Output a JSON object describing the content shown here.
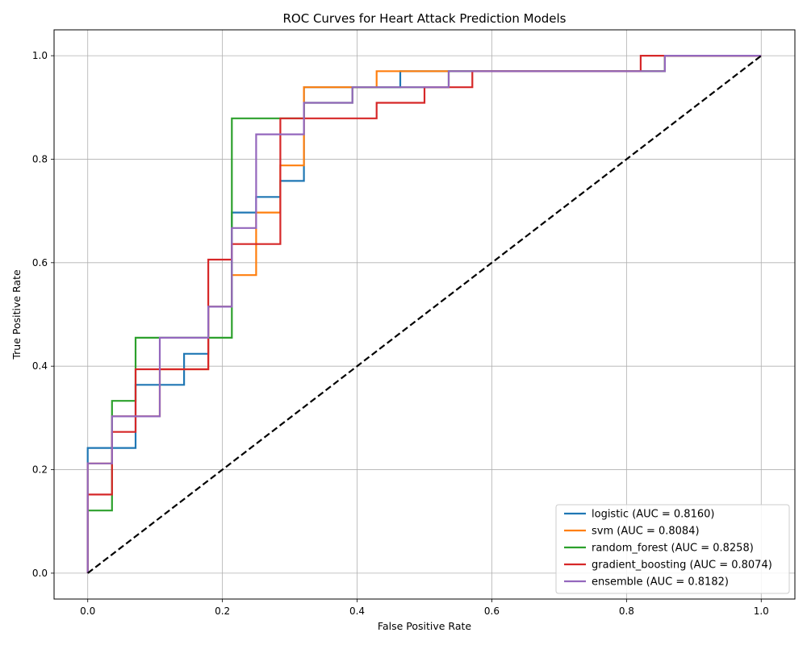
{
  "chart_data": {
    "type": "line",
    "title": "ROC Curves for Heart Attack Prediction Models",
    "xlabel": "False Positive Rate",
    "ylabel": "True Positive Rate",
    "xlim": [
      -0.05,
      1.05
    ],
    "ylim": [
      -0.05,
      1.05
    ],
    "xticks": [
      0.0,
      0.2,
      0.4,
      0.6,
      0.8,
      1.0
    ],
    "yticks": [
      0.0,
      0.2,
      0.4,
      0.6,
      0.8,
      1.0
    ],
    "tick_labels_x": [
      "0.0",
      "0.2",
      "0.4",
      "0.6",
      "0.8",
      "1.0"
    ],
    "tick_labels_y": [
      "0.0",
      "0.2",
      "0.4",
      "0.6",
      "0.8",
      "1.0"
    ],
    "grid": true,
    "legend_position": "lower-right",
    "series": [
      {
        "name": "logistic (AUC = 0.8160)",
        "color": "#1f77b4",
        "x": [
          0.0,
          0.0,
          0.071,
          0.071,
          0.143,
          0.143,
          0.179,
          0.179,
          0.214,
          0.214,
          0.25,
          0.25,
          0.286,
          0.286,
          0.321,
          0.321,
          0.464,
          0.464,
          0.857,
          0.857,
          1.0
        ],
        "y": [
          0.0,
          0.242,
          0.242,
          0.364,
          0.364,
          0.424,
          0.424,
          0.515,
          0.515,
          0.697,
          0.697,
          0.727,
          0.727,
          0.758,
          0.758,
          0.939,
          0.939,
          0.97,
          0.97,
          1.0,
          1.0
        ]
      },
      {
        "name": "svm (AUC = 0.8084)",
        "color": "#ff7f0e",
        "x": [
          0.0,
          0.0,
          0.036,
          0.036,
          0.107,
          0.107,
          0.179,
          0.179,
          0.214,
          0.214,
          0.25,
          0.25,
          0.286,
          0.286,
          0.321,
          0.321,
          0.429,
          0.429,
          0.857,
          0.857,
          1.0
        ],
        "y": [
          0.0,
          0.212,
          0.212,
          0.303,
          0.303,
          0.394,
          0.394,
          0.515,
          0.515,
          0.576,
          0.576,
          0.697,
          0.697,
          0.788,
          0.788,
          0.939,
          0.939,
          0.97,
          0.97,
          1.0,
          1.0
        ]
      },
      {
        "name": "random_forest (AUC = 0.8258)",
        "color": "#2ca02c",
        "x": [
          0.0,
          0.0,
          0.036,
          0.036,
          0.071,
          0.071,
          0.214,
          0.214,
          0.321,
          0.321,
          0.393,
          0.393,
          0.536,
          0.536,
          0.857,
          0.857,
          1.0
        ],
        "y": [
          0.0,
          0.121,
          0.121,
          0.333,
          0.333,
          0.455,
          0.455,
          0.879,
          0.879,
          0.909,
          0.909,
          0.939,
          0.939,
          0.97,
          0.97,
          1.0,
          1.0
        ]
      },
      {
        "name": "gradient_boosting (AUC = 0.8074)",
        "color": "#d62728",
        "x": [
          0.0,
          0.0,
          0.036,
          0.036,
          0.071,
          0.071,
          0.179,
          0.179,
          0.214,
          0.214,
          0.286,
          0.286,
          0.429,
          0.429,
          0.5,
          0.5,
          0.571,
          0.571,
          0.821,
          0.821,
          1.0
        ],
        "y": [
          0.0,
          0.152,
          0.152,
          0.273,
          0.273,
          0.394,
          0.394,
          0.606,
          0.606,
          0.636,
          0.636,
          0.879,
          0.879,
          0.909,
          0.909,
          0.939,
          0.939,
          0.97,
          0.97,
          1.0,
          1.0
        ]
      },
      {
        "name": "ensemble (AUC = 0.8182)",
        "color": "#9467bd",
        "x": [
          0.0,
          0.0,
          0.036,
          0.036,
          0.107,
          0.107,
          0.179,
          0.179,
          0.214,
          0.214,
          0.25,
          0.25,
          0.321,
          0.321,
          0.393,
          0.393,
          0.536,
          0.536,
          0.857,
          0.857,
          1.0
        ],
        "y": [
          0.0,
          0.212,
          0.212,
          0.303,
          0.303,
          0.455,
          0.455,
          0.515,
          0.515,
          0.667,
          0.667,
          0.848,
          0.848,
          0.909,
          0.909,
          0.939,
          0.939,
          0.97,
          0.97,
          1.0,
          1.0
        ]
      }
    ],
    "reference_line": {
      "x": [
        0.0,
        1.0
      ],
      "y": [
        0.0,
        1.0
      ],
      "color": "#000000",
      "style": "dashed"
    }
  }
}
